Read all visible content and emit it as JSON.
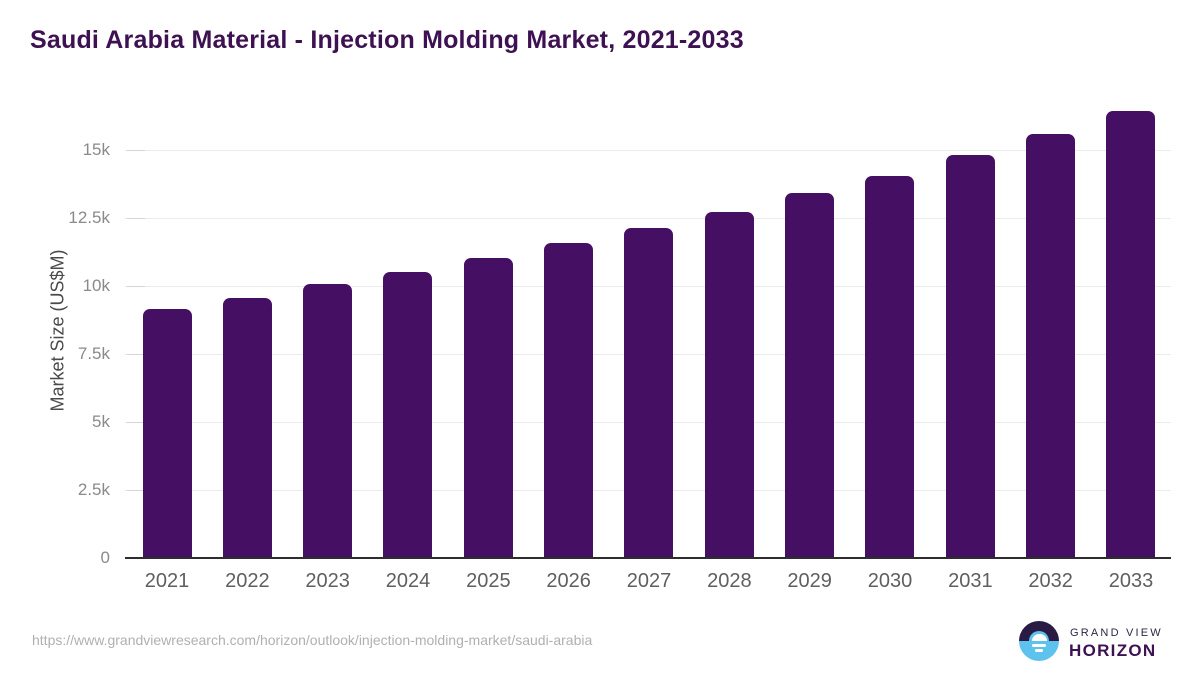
{
  "title": "Saudi Arabia Material - Injection Molding Market, 2021-2033",
  "chart_data": {
    "type": "bar",
    "title": "Saudi Arabia Material - Injection Molding Market, 2021-2033",
    "categories": [
      "2021",
      "2022",
      "2023",
      "2024",
      "2025",
      "2026",
      "2027",
      "2028",
      "2029",
      "2030",
      "2031",
      "2032",
      "2033"
    ],
    "values": [
      9150,
      9550,
      10070,
      10510,
      11030,
      11580,
      12130,
      12720,
      13420,
      14040,
      14820,
      15590,
      16430
    ],
    "xlabel": "",
    "ylabel": "Market Size (US$M)",
    "ylim": [
      0,
      17100
    ],
    "yticks": [
      0,
      2500,
      5000,
      7500,
      10000,
      12500,
      15000
    ],
    "ytick_labels": [
      "0",
      "2.5k",
      "5k",
      "7.5k",
      "10k",
      "12.5k",
      "15k"
    ],
    "grid": true,
    "legend": false,
    "bar_color": "#451063"
  },
  "colors": {
    "bar": "#451063",
    "title": "#3d1152",
    "gridline": "#ececec",
    "axis_line": "#2d2d2d",
    "y_tick_text": "#8a8a8a",
    "x_tick_text": "#5f5f5f",
    "url_text": "#b0b0b0",
    "logo_dark": "#2a1b45",
    "logo_blue": "#5ec2ef"
  },
  "footer": {
    "source_url": "https://www.grandviewresearch.com/horizon/outlook/injection-molding-market/saudi-arabia",
    "logo": {
      "line1": "GRAND VIEW",
      "line2": "HORIZON"
    }
  }
}
